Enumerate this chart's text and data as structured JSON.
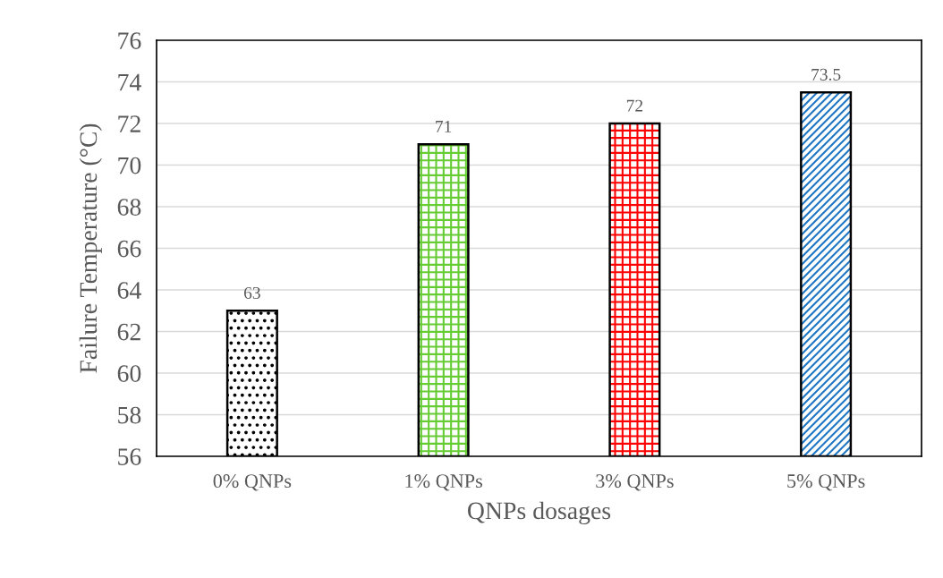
{
  "chart_data": {
    "type": "bar",
    "xlabel": "QNPs dosages",
    "ylabel": "Failure Temperature (°C)",
    "categories": [
      "0% QNPs",
      "1% QNPs",
      "3% QNPs",
      "5% QNPs"
    ],
    "values": [
      63,
      71,
      72,
      73.5
    ],
    "colors": [
      "#000000",
      "#66cc33",
      "#ff0000",
      "#1f77c4"
    ],
    "ylim": [
      56,
      76
    ],
    "yticks": [
      56,
      58,
      60,
      62,
      64,
      66,
      68,
      70,
      72,
      74,
      76
    ],
    "grid": "y",
    "data_labels": true
  }
}
